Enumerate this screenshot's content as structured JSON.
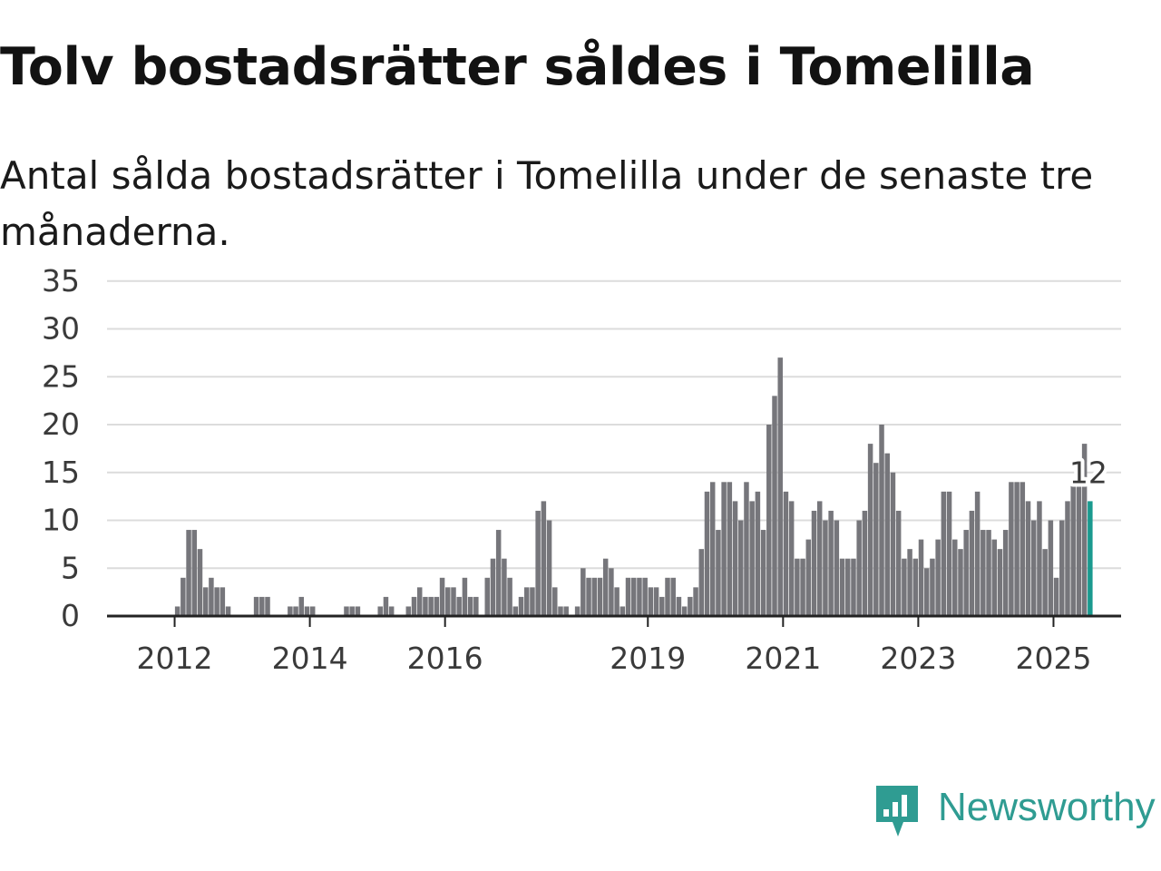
{
  "title": "Tolv bostadsrätter såldes i Tomelilla",
  "subtitle": "Antal sålda bostadsrätter i Tomelilla under de senaste tre månaderna.",
  "logo": {
    "text": "Newsworthy",
    "icon": "newsworthy-logo-icon",
    "color": "#2f9c92"
  },
  "chart_data": {
    "type": "bar",
    "x_axis": {
      "start": "2011-01",
      "end": "2025-12",
      "tick_labels": [
        "2012",
        "2014",
        "2016",
        "2019",
        "2021",
        "2023",
        "2025"
      ]
    },
    "y_axis": {
      "ticks": [
        0,
        5,
        10,
        15,
        20,
        25,
        30,
        35
      ],
      "ylim": [
        0,
        35
      ],
      "grid": true
    },
    "colors": {
      "bar": "#76767b",
      "highlight": "#1a9a8f",
      "grid": "#dcdcdc",
      "axis": "#222222"
    },
    "highlight_label": "12",
    "series": [
      {
        "values": [
          {
            "x": "2012-01",
            "y": 1
          },
          {
            "x": "2012-02",
            "y": 4
          },
          {
            "x": "2012-03",
            "y": 9
          },
          {
            "x": "2012-04",
            "y": 9
          },
          {
            "x": "2012-05",
            "y": 7
          },
          {
            "x": "2012-06",
            "y": 3
          },
          {
            "x": "2012-07",
            "y": 4
          },
          {
            "x": "2012-08",
            "y": 3
          },
          {
            "x": "2012-09",
            "y": 3
          },
          {
            "x": "2012-10",
            "y": 1
          },
          {
            "x": "2013-03",
            "y": 2
          },
          {
            "x": "2013-04",
            "y": 2
          },
          {
            "x": "2013-05",
            "y": 2
          },
          {
            "x": "2013-09",
            "y": 1
          },
          {
            "x": "2013-10",
            "y": 1
          },
          {
            "x": "2013-11",
            "y": 2
          },
          {
            "x": "2013-12",
            "y": 1
          },
          {
            "x": "2014-01",
            "y": 1
          },
          {
            "x": "2014-07",
            "y": 1
          },
          {
            "x": "2014-08",
            "y": 1
          },
          {
            "x": "2014-09",
            "y": 1
          },
          {
            "x": "2015-01",
            "y": 1
          },
          {
            "x": "2015-02",
            "y": 2
          },
          {
            "x": "2015-03",
            "y": 1
          },
          {
            "x": "2015-06",
            "y": 1
          },
          {
            "x": "2015-07",
            "y": 2
          },
          {
            "x": "2015-08",
            "y": 3
          },
          {
            "x": "2015-09",
            "y": 2
          },
          {
            "x": "2015-10",
            "y": 2
          },
          {
            "x": "2015-11",
            "y": 2
          },
          {
            "x": "2015-12",
            "y": 4
          },
          {
            "x": "2016-01",
            "y": 3
          },
          {
            "x": "2016-02",
            "y": 3
          },
          {
            "x": "2016-03",
            "y": 2
          },
          {
            "x": "2016-04",
            "y": 4
          },
          {
            "x": "2016-05",
            "y": 2
          },
          {
            "x": "2016-06",
            "y": 2
          },
          {
            "x": "2016-08",
            "y": 4
          },
          {
            "x": "2016-09",
            "y": 6
          },
          {
            "x": "2016-10",
            "y": 9
          },
          {
            "x": "2016-11",
            "y": 6
          },
          {
            "x": "2016-12",
            "y": 4
          },
          {
            "x": "2017-01",
            "y": 1
          },
          {
            "x": "2017-02",
            "y": 2
          },
          {
            "x": "2017-03",
            "y": 3
          },
          {
            "x": "2017-04",
            "y": 3
          },
          {
            "x": "2017-05",
            "y": 11
          },
          {
            "x": "2017-06",
            "y": 12
          },
          {
            "x": "2017-07",
            "y": 10
          },
          {
            "x": "2017-08",
            "y": 3
          },
          {
            "x": "2017-09",
            "y": 1
          },
          {
            "x": "2017-10",
            "y": 1
          },
          {
            "x": "2017-12",
            "y": 1
          },
          {
            "x": "2018-01",
            "y": 5
          },
          {
            "x": "2018-02",
            "y": 4
          },
          {
            "x": "2018-03",
            "y": 4
          },
          {
            "x": "2018-04",
            "y": 4
          },
          {
            "x": "2018-05",
            "y": 6
          },
          {
            "x": "2018-06",
            "y": 5
          },
          {
            "x": "2018-07",
            "y": 3
          },
          {
            "x": "2018-08",
            "y": 1
          },
          {
            "x": "2018-09",
            "y": 4
          },
          {
            "x": "2018-10",
            "y": 4
          },
          {
            "x": "2018-11",
            "y": 4
          },
          {
            "x": "2018-12",
            "y": 4
          },
          {
            "x": "2019-01",
            "y": 3
          },
          {
            "x": "2019-02",
            "y": 3
          },
          {
            "x": "2019-03",
            "y": 2
          },
          {
            "x": "2019-04",
            "y": 4
          },
          {
            "x": "2019-05",
            "y": 4
          },
          {
            "x": "2019-06",
            "y": 2
          },
          {
            "x": "2019-07",
            "y": 1
          },
          {
            "x": "2019-08",
            "y": 2
          },
          {
            "x": "2019-09",
            "y": 3
          },
          {
            "x": "2019-10",
            "y": 7
          },
          {
            "x": "2019-11",
            "y": 13
          },
          {
            "x": "2019-12",
            "y": 14
          },
          {
            "x": "2020-01",
            "y": 9
          },
          {
            "x": "2020-02",
            "y": 14
          },
          {
            "x": "2020-03",
            "y": 14
          },
          {
            "x": "2020-04",
            "y": 12
          },
          {
            "x": "2020-05",
            "y": 10
          },
          {
            "x": "2020-06",
            "y": 14
          },
          {
            "x": "2020-07",
            "y": 12
          },
          {
            "x": "2020-08",
            "y": 13
          },
          {
            "x": "2020-09",
            "y": 9
          },
          {
            "x": "2020-10",
            "y": 20
          },
          {
            "x": "2020-11",
            "y": 23
          },
          {
            "x": "2020-12",
            "y": 27
          },
          {
            "x": "2021-01",
            "y": 13
          },
          {
            "x": "2021-02",
            "y": 12
          },
          {
            "x": "2021-03",
            "y": 6
          },
          {
            "x": "2021-04",
            "y": 6
          },
          {
            "x": "2021-05",
            "y": 8
          },
          {
            "x": "2021-06",
            "y": 11
          },
          {
            "x": "2021-07",
            "y": 12
          },
          {
            "x": "2021-08",
            "y": 10
          },
          {
            "x": "2021-09",
            "y": 11
          },
          {
            "x": "2021-10",
            "y": 10
          },
          {
            "x": "2021-11",
            "y": 6
          },
          {
            "x": "2021-12",
            "y": 6
          },
          {
            "x": "2022-01",
            "y": 6
          },
          {
            "x": "2022-02",
            "y": 10
          },
          {
            "x": "2022-03",
            "y": 11
          },
          {
            "x": "2022-04",
            "y": 18
          },
          {
            "x": "2022-05",
            "y": 16
          },
          {
            "x": "2022-06",
            "y": 20
          },
          {
            "x": "2022-07",
            "y": 17
          },
          {
            "x": "2022-08",
            "y": 15
          },
          {
            "x": "2022-09",
            "y": 11
          },
          {
            "x": "2022-10",
            "y": 6
          },
          {
            "x": "2022-11",
            "y": 7
          },
          {
            "x": "2022-12",
            "y": 6
          },
          {
            "x": "2023-01",
            "y": 8
          },
          {
            "x": "2023-02",
            "y": 5
          },
          {
            "x": "2023-03",
            "y": 6
          },
          {
            "x": "2023-04",
            "y": 8
          },
          {
            "x": "2023-05",
            "y": 13
          },
          {
            "x": "2023-06",
            "y": 13
          },
          {
            "x": "2023-07",
            "y": 8
          },
          {
            "x": "2023-08",
            "y": 7
          },
          {
            "x": "2023-09",
            "y": 9
          },
          {
            "x": "2023-10",
            "y": 11
          },
          {
            "x": "2023-11",
            "y": 13
          },
          {
            "x": "2023-12",
            "y": 9
          },
          {
            "x": "2024-01",
            "y": 9
          },
          {
            "x": "2024-02",
            "y": 8
          },
          {
            "x": "2024-03",
            "y": 7
          },
          {
            "x": "2024-04",
            "y": 9
          },
          {
            "x": "2024-05",
            "y": 14
          },
          {
            "x": "2024-06",
            "y": 14
          },
          {
            "x": "2024-07",
            "y": 14
          },
          {
            "x": "2024-08",
            "y": 12
          },
          {
            "x": "2024-09",
            "y": 10
          },
          {
            "x": "2024-10",
            "y": 12
          },
          {
            "x": "2024-11",
            "y": 7
          },
          {
            "x": "2024-12",
            "y": 10
          },
          {
            "x": "2025-01",
            "y": 4
          },
          {
            "x": "2025-02",
            "y": 10
          },
          {
            "x": "2025-03",
            "y": 12
          },
          {
            "x": "2025-04",
            "y": 14
          },
          {
            "x": "2025-05",
            "y": 14
          },
          {
            "x": "2025-06",
            "y": 18
          },
          {
            "x": "2025-07",
            "y": 12
          }
        ]
      }
    ]
  }
}
